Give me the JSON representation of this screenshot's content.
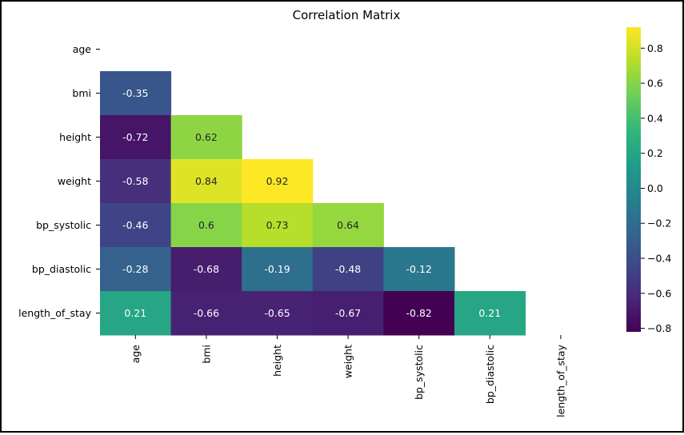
{
  "chart_data": {
    "type": "heatmap",
    "title": "Correlation Matrix",
    "variables": [
      "age",
      "bmi",
      "height",
      "weight",
      "bp_systolic",
      "bp_diastolic",
      "length_of_stay"
    ],
    "mask": "upper-triangle-including-diagonal",
    "cells": [
      {
        "row": "bmi",
        "col": "age",
        "value": -0.35,
        "label": "-0.35"
      },
      {
        "row": "height",
        "col": "age",
        "value": -0.72,
        "label": "-0.72"
      },
      {
        "row": "height",
        "col": "bmi",
        "value": 0.62,
        "label": "0.62"
      },
      {
        "row": "weight",
        "col": "age",
        "value": -0.58,
        "label": "-0.58"
      },
      {
        "row": "weight",
        "col": "bmi",
        "value": 0.84,
        "label": "0.84"
      },
      {
        "row": "weight",
        "col": "height",
        "value": 0.92,
        "label": "0.92"
      },
      {
        "row": "bp_systolic",
        "col": "age",
        "value": -0.46,
        "label": "-0.46"
      },
      {
        "row": "bp_systolic",
        "col": "bmi",
        "value": 0.6,
        "label": "0.6"
      },
      {
        "row": "bp_systolic",
        "col": "height",
        "value": 0.73,
        "label": "0.73"
      },
      {
        "row": "bp_systolic",
        "col": "weight",
        "value": 0.64,
        "label": "0.64"
      },
      {
        "row": "bp_diastolic",
        "col": "age",
        "value": -0.28,
        "label": "-0.28"
      },
      {
        "row": "bp_diastolic",
        "col": "bmi",
        "value": -0.68,
        "label": "-0.68"
      },
      {
        "row": "bp_diastolic",
        "col": "height",
        "value": -0.19,
        "label": "-0.19"
      },
      {
        "row": "bp_diastolic",
        "col": "weight",
        "value": -0.48,
        "label": "-0.48"
      },
      {
        "row": "bp_diastolic",
        "col": "bp_systolic",
        "value": -0.12,
        "label": "-0.12"
      },
      {
        "row": "length_of_stay",
        "col": "age",
        "value": 0.21,
        "label": "0.21"
      },
      {
        "row": "length_of_stay",
        "col": "bmi",
        "value": -0.66,
        "label": "-0.66"
      },
      {
        "row": "length_of_stay",
        "col": "height",
        "value": -0.65,
        "label": "-0.65"
      },
      {
        "row": "length_of_stay",
        "col": "weight",
        "value": -0.67,
        "label": "-0.67"
      },
      {
        "row": "length_of_stay",
        "col": "bp_systolic",
        "value": -0.82,
        "label": "-0.82"
      },
      {
        "row": "length_of_stay",
        "col": "bp_diastolic",
        "value": 0.21,
        "label": "0.21"
      }
    ],
    "colormap": "viridis",
    "colorbar": {
      "vmin": -0.82,
      "vmax": 0.92,
      "ticks": [
        0.8,
        0.6,
        0.4,
        0.2,
        0.0,
        -0.2,
        -0.4,
        -0.6,
        -0.8
      ],
      "tick_labels": [
        "0.8",
        "0.6",
        "0.4",
        "0.2",
        "0.0",
        "−0.2",
        "−0.4",
        "−0.6",
        "−0.8"
      ]
    },
    "grid": false,
    "legend": "colorbar-right"
  },
  "colors": {
    "viridis_stops": [
      "#440154",
      "#482878",
      "#3e4989",
      "#31688e",
      "#26828e",
      "#1f9e89",
      "#35b779",
      "#6ece58",
      "#b5de2b",
      "#fde725"
    ],
    "text_light": "#ffffff",
    "text_dark": "#262626"
  }
}
